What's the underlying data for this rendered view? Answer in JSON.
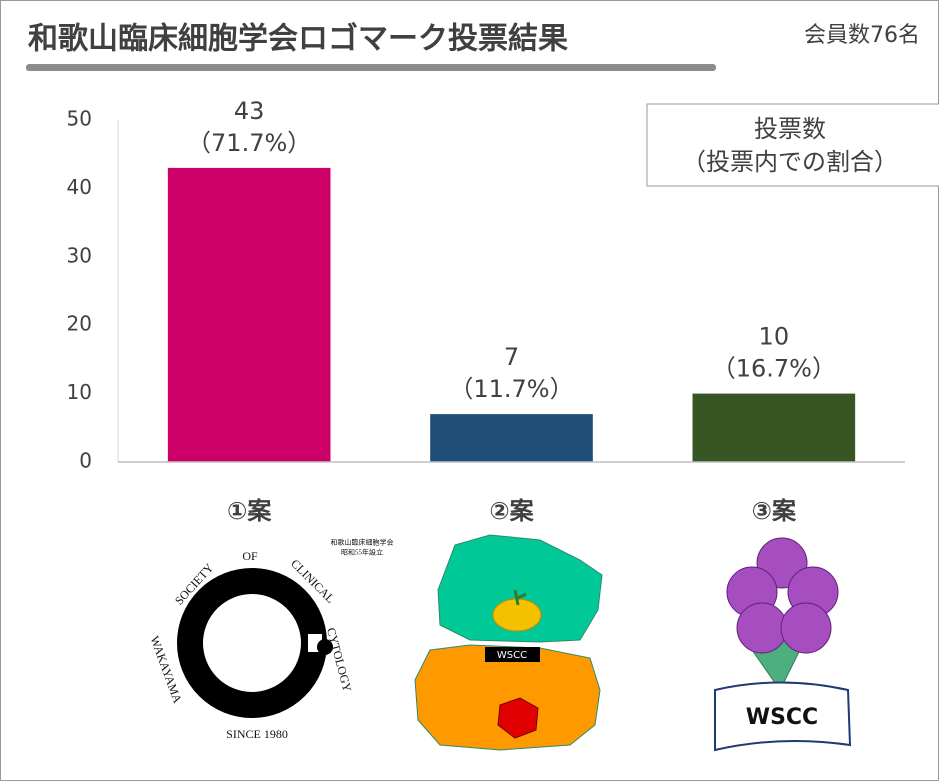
{
  "chart_data": {
    "type": "bar",
    "title": "和歌山臨床細胞学会ロゴマーク投票結果",
    "subtitle": "会員数76名",
    "legend_lines": [
      "投票数",
      "（投票内での割合）"
    ],
    "categories": [
      "①案",
      "②案",
      "③案"
    ],
    "values": [
      43,
      7,
      10
    ],
    "shares": [
      71.7,
      11.7,
      16.7
    ],
    "share_labels": [
      "（71.7%）",
      "（11.7%）",
      "（16.7%）"
    ],
    "colors": [
      "#cc0066",
      "#1f4e79",
      "#375623"
    ],
    "ylim": [
      0,
      50
    ],
    "yticks": [
      0,
      10,
      20,
      30,
      40,
      50
    ],
    "grid": false
  },
  "logos": [
    {
      "texts": [
        "SOCIETY",
        "OF",
        "CLINICAL",
        "CYTOLOGY",
        "WAKAYAMA",
        "SINCE 1980",
        "和歌山臨床細胞学会",
        "昭和55年設立"
      ]
    },
    {
      "texts": [
        "WSCC"
      ]
    },
    {
      "texts": [
        "WSCC"
      ]
    }
  ]
}
